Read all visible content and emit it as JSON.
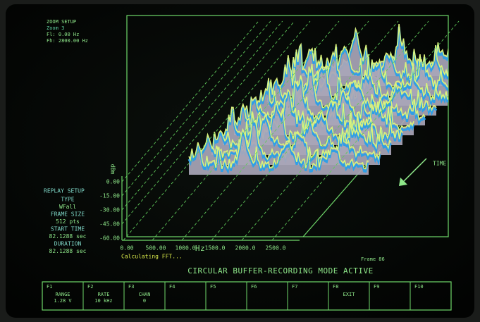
{
  "zoom_setup": {
    "title": "ZOOM SETUP",
    "zoom": "Zoom 3",
    "fl": "Fl:   0.00 Hz",
    "fh": "Fh: 2800.00 Hz"
  },
  "replay_setup": {
    "title": "REPLAY SETUP",
    "items": [
      "TYPE",
      "WFall",
      "FRAME SIZE",
      "512 pts",
      "START TIME",
      "82.1288 sec",
      "DURATION",
      "82.1288 sec"
    ]
  },
  "plot": {
    "y_unit": "dBm",
    "y_labels": [
      "0.00",
      "-15.00",
      "-30.00",
      "-45.00",
      "-60.00"
    ],
    "x_labels": [
      "0.00",
      "500.00",
      "1000.0",
      "1500.0",
      "2000.0",
      "2500.0"
    ],
    "x_unit": "Hz",
    "time_label": "TIME"
  },
  "status": "Calculating FFT...",
  "frame": "Frame  86",
  "mode": "CIRCULAR BUFFER-RECORDING MODE ACTIVE",
  "function_keys": [
    {
      "key": "F1",
      "lines": [
        "RANGE",
        "1.28 V"
      ]
    },
    {
      "key": "F2",
      "lines": [
        "RATE",
        "10 kHz"
      ]
    },
    {
      "key": "F3",
      "lines": [
        "CHAN",
        "0"
      ]
    },
    {
      "key": "F4"
    },
    {
      "key": "F5"
    },
    {
      "key": "F6"
    },
    {
      "key": "F7"
    },
    {
      "key": "F8",
      "lines": [
        "EXIT"
      ]
    },
    {
      "key": "F9"
    },
    {
      "key": "F10"
    }
  ]
}
